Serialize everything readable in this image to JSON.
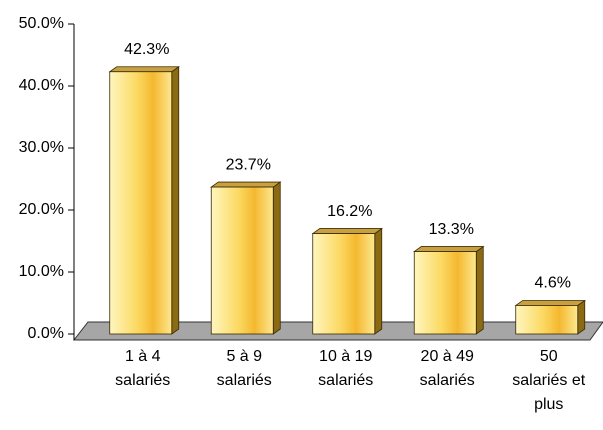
{
  "chart_data": {
    "type": "bar3d",
    "categories": [
      [
        "1 à 4",
        "salariés"
      ],
      [
        "5 à 9",
        "salariés"
      ],
      [
        "10 à 19",
        "salariés"
      ],
      [
        "20 à 49",
        "salariés"
      ],
      [
        "50",
        "salariés et",
        "plus"
      ]
    ],
    "values": [
      42.3,
      23.7,
      16.2,
      13.3,
      4.6
    ],
    "value_labels": [
      "42.3%",
      "23.7%",
      "16.2%",
      "13.3%",
      "4.6%"
    ],
    "color": "#f8c840",
    "ylim": [
      0,
      50
    ],
    "yticks": [
      {
        "value": 0,
        "label": "0.0%"
      },
      {
        "value": 10,
        "label": "10.0%"
      },
      {
        "value": 20,
        "label": "20.0%"
      },
      {
        "value": 30,
        "label": "30.0%"
      },
      {
        "value": 40,
        "label": "40.0%"
      },
      {
        "value": 50,
        "label": "50.0%"
      }
    ]
  }
}
